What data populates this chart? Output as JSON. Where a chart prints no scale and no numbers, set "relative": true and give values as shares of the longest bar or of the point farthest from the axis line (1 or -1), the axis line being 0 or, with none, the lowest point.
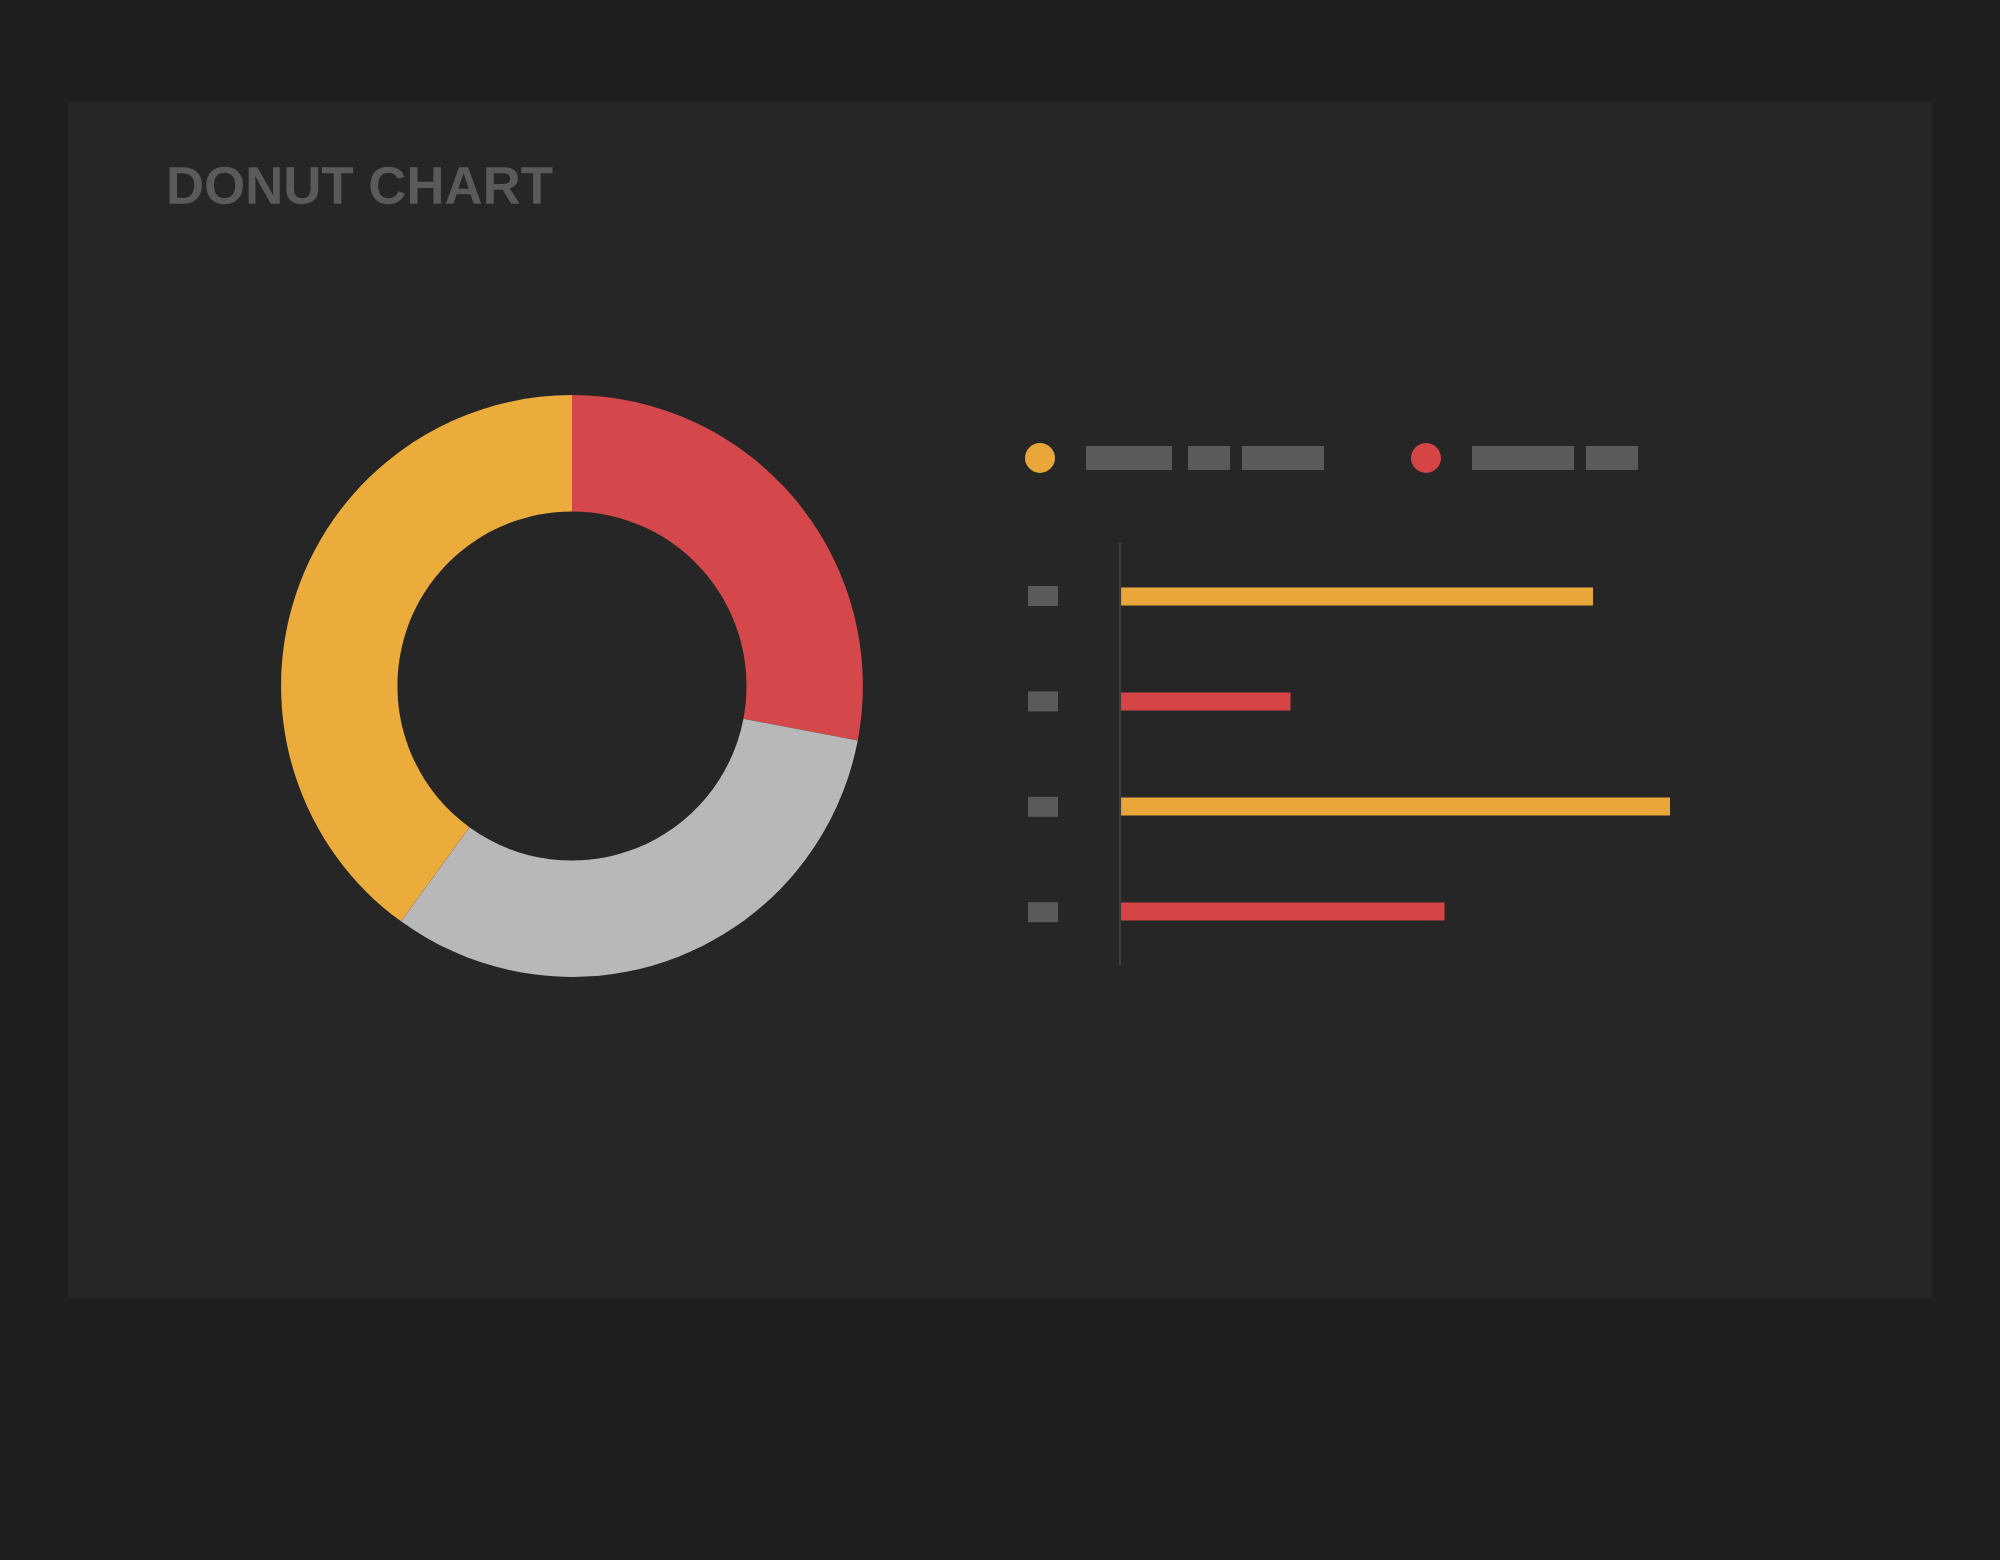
{
  "chart_data": [
    {
      "type": "donut",
      "title": "DONUT CHART",
      "categories": [
        null,
        null,
        null
      ],
      "values": [
        28,
        32,
        40
      ],
      "colors": [
        "#d4474a",
        "#b8b8b8",
        "#ebac3b"
      ]
    },
    {
      "type": "bar",
      "orientation": "horizontal",
      "relative": true,
      "categories": [
        null,
        null,
        null,
        null
      ],
      "values": [
        0.86,
        0.31,
        1,
        0.59
      ],
      "colors": [
        "#e9a73a",
        "#d64545",
        "#e9a73a",
        "#d64545"
      ]
    }
  ]
}
